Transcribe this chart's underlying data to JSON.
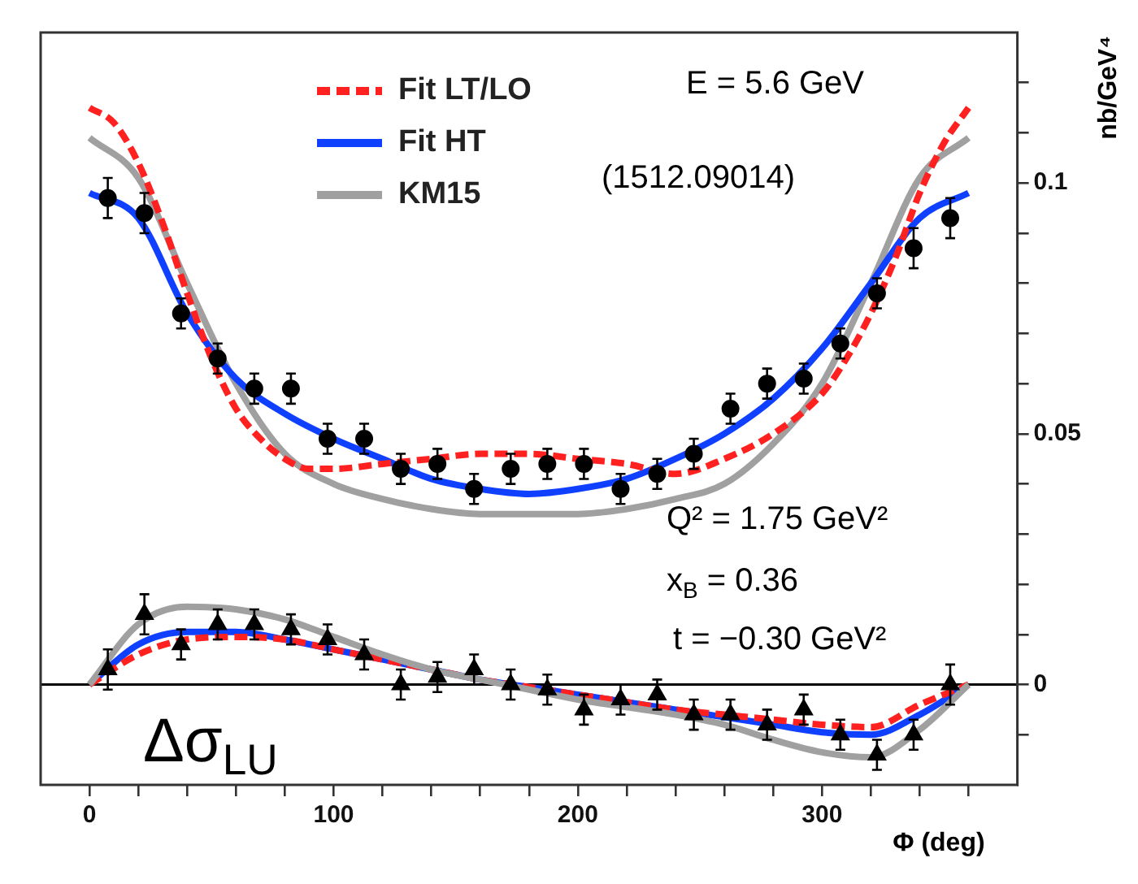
{
  "chart_data": {
    "type": "line",
    "xlabel": "Φ (deg)",
    "ylabel": "nb/GeV⁴",
    "xlim": [
      -20,
      380
    ],
    "xticks": [
      0,
      {
        "value": 20,
        "label": null
      },
      {
        "value": 40,
        "label": null
      },
      {
        "value": 60,
        "label": null
      },
      {
        "value": 80,
        "label": null
      },
      100,
      {
        "value": 120,
        "label": null
      },
      {
        "value": 140,
        "label": null
      },
      {
        "value": 160,
        "label": null
      },
      {
        "value": 180,
        "label": null
      },
      200,
      {
        "value": 220,
        "label": null
      },
      {
        "value": 240,
        "label": null
      },
      {
        "value": 260,
        "label": null
      },
      {
        "value": 280,
        "label": null
      },
      300,
      {
        "value": 320,
        "label": null
      },
      {
        "value": 340,
        "label": null
      },
      {
        "value": 360,
        "label": null
      }
    ],
    "ylim": [
      -0.02,
      0.13
    ],
    "yticks": [
      {
        "value": -0.01,
        "label": null
      },
      0,
      {
        "value": 0.01,
        "label": null
      },
      {
        "value": 0.02,
        "label": null
      },
      {
        "value": 0.03,
        "label": null
      },
      {
        "value": 0.04,
        "label": null
      },
      0.05,
      {
        "value": 0.06,
        "label": null
      },
      {
        "value": 0.07,
        "label": null
      },
      {
        "value": 0.08,
        "label": null
      },
      {
        "value": 0.09,
        "label": null
      },
      0.1,
      {
        "value": 0.11,
        "label": null
      },
      {
        "value": 0.12,
        "label": null
      }
    ],
    "legend": "top",
    "ref_lines": [
      {
        "axis": "y",
        "value": 0,
        "color": "#000000"
      }
    ],
    "annotations": [
      "E = 5.6 GeV",
      "(1512.09014)",
      "Q² = 1.75 GeV²",
      "x$_{B}$ = 0.36",
      "t = −0.30 GeV²",
      "Δσ$_{LU}$"
    ],
    "series": [
      {
        "name": "Fit LT/LO",
        "color": "#ff2020",
        "line_style": "dashed",
        "marker": "none",
        "x": [
          0,
          10,
          20,
          30,
          40,
          50,
          60,
          70,
          80,
          90,
          100,
          120,
          140,
          160,
          180,
          200,
          220,
          240,
          260,
          280,
          300,
          310,
          320,
          330,
          340,
          350,
          360
        ],
        "values": [
          0.115,
          0.112,
          0.104,
          0.092,
          0.078,
          0.065,
          0.055,
          0.049,
          0.045,
          0.043,
          0.043,
          0.044,
          0.045,
          0.046,
          0.046,
          0.045,
          0.044,
          0.042,
          0.045,
          0.05,
          0.058,
          0.065,
          0.074,
          0.085,
          0.098,
          0.108,
          0.115
        ]
      },
      {
        "name": "Fit HT",
        "color": "#1040ff",
        "line_style": "solid",
        "marker": "none",
        "x": [
          0,
          20,
          40,
          60,
          80,
          100,
          120,
          140,
          160,
          180,
          200,
          220,
          240,
          260,
          280,
          300,
          320,
          340,
          360
        ],
        "values": [
          0.098,
          0.093,
          0.074,
          0.061,
          0.054,
          0.049,
          0.045,
          0.041,
          0.039,
          0.038,
          0.039,
          0.041,
          0.045,
          0.05,
          0.057,
          0.067,
          0.08,
          0.093,
          0.098
        ]
      },
      {
        "name": "KM15",
        "color": "#a0a0a0",
        "line_style": "solid",
        "marker": "none",
        "x": [
          0,
          20,
          40,
          60,
          80,
          100,
          120,
          140,
          160,
          180,
          200,
          220,
          240,
          260,
          280,
          300,
          320,
          340,
          360
        ],
        "values": [
          0.109,
          0.101,
          0.08,
          0.06,
          0.046,
          0.04,
          0.037,
          0.035,
          0.034,
          0.034,
          0.034,
          0.035,
          0.037,
          0.04,
          0.048,
          0.06,
          0.08,
          0.101,
          0.109
        ]
      },
      {
        "color": "#a0a0a0",
        "line_style": "solid",
        "marker": "none",
        "x": [
          0,
          20,
          40,
          60,
          80,
          100,
          120,
          140,
          160,
          180,
          200,
          220,
          240,
          260,
          280,
          300,
          320,
          340,
          360
        ],
        "values": [
          0,
          0.012,
          0.0155,
          0.015,
          0.013,
          0.0095,
          0.006,
          0.003,
          0.001,
          -0.001,
          -0.003,
          -0.0045,
          -0.006,
          -0.008,
          -0.011,
          -0.0135,
          -0.0145,
          -0.009,
          0
        ]
      },
      {
        "color": "#ff2020",
        "line_style": "dashed",
        "marker": "none",
        "x": [
          0,
          20,
          40,
          60,
          80,
          100,
          120,
          140,
          160,
          180,
          200,
          220,
          240,
          260,
          280,
          300,
          320,
          340,
          360
        ],
        "values": [
          0,
          0.006,
          0.009,
          0.0095,
          0.009,
          0.007,
          0.005,
          0.003,
          0.001,
          -0.0005,
          -0.002,
          -0.0035,
          -0.005,
          -0.006,
          -0.007,
          -0.008,
          -0.0085,
          -0.004,
          0
        ]
      },
      {
        "color": "#1040ff",
        "line_style": "solid",
        "marker": "none",
        "x": [
          0,
          20,
          40,
          60,
          80,
          100,
          120,
          140,
          160,
          180,
          200,
          220,
          240,
          260,
          280,
          300,
          320,
          340,
          360
        ],
        "values": [
          0,
          0.008,
          0.0105,
          0.0105,
          0.009,
          0.007,
          0.005,
          0.003,
          0.001,
          -0.0005,
          -0.002,
          -0.0035,
          -0.005,
          -0.0065,
          -0.008,
          -0.0095,
          -0.01,
          -0.006,
          0
        ]
      },
      {
        "type": "scatter",
        "color": "#000000",
        "marker": "circle",
        "x": [
          7.5,
          22.5,
          37.5,
          52.5,
          67.5,
          82.5,
          97.5,
          112.5,
          127.5,
          142.5,
          157.5,
          172.5,
          187.5,
          202.5,
          217.5,
          232.5,
          247.5,
          262.5,
          277.5,
          292.5,
          307.5,
          322.5,
          337.5,
          352.5
        ],
        "values": [
          0.097,
          0.094,
          0.074,
          0.065,
          0.059,
          0.059,
          0.049,
          0.049,
          0.043,
          0.044,
          0.039,
          0.043,
          0.044,
          0.044,
          0.039,
          0.042,
          0.046,
          0.055,
          0.06,
          0.061,
          0.068,
          0.078,
          0.087,
          0.093
        ],
        "errors": [
          0.004,
          0.004,
          0.003,
          0.003,
          0.003,
          0.003,
          0.003,
          0.003,
          0.003,
          0.003,
          0.003,
          0.003,
          0.003,
          0.003,
          0.003,
          0.003,
          0.003,
          0.003,
          0.003,
          0.003,
          0.003,
          0.003,
          0.004,
          0.004
        ]
      },
      {
        "type": "scatter",
        "color": "#000000",
        "marker": "triangle",
        "x": [
          7.5,
          22.5,
          37.5,
          52.5,
          67.5,
          82.5,
          97.5,
          112.5,
          127.5,
          142.5,
          157.5,
          172.5,
          187.5,
          202.5,
          217.5,
          232.5,
          247.5,
          262.5,
          277.5,
          292.5,
          307.5,
          322.5,
          337.5,
          352.5
        ],
        "values": [
          0.003,
          0.014,
          0.008,
          0.012,
          0.012,
          0.011,
          0.009,
          0.006,
          0.0,
          0.0015,
          0.003,
          0.0,
          -0.001,
          -0.005,
          -0.003,
          -0.002,
          -0.006,
          -0.006,
          -0.008,
          -0.005,
          -0.01,
          -0.014,
          -0.01,
          0.0
        ],
        "errors": [
          0.004,
          0.004,
          0.003,
          0.003,
          0.003,
          0.003,
          0.003,
          0.003,
          0.003,
          0.003,
          0.003,
          0.003,
          0.003,
          0.003,
          0.003,
          0.003,
          0.003,
          0.003,
          0.003,
          0.003,
          0.003,
          0.003,
          0.003,
          0.004
        ]
      }
    ]
  }
}
